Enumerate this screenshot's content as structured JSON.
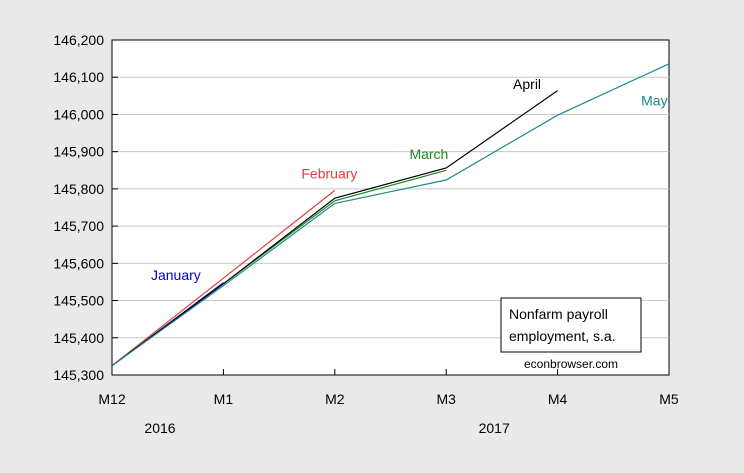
{
  "chart_data": {
    "type": "line",
    "title": "",
    "xlabel": "",
    "ylabel": "",
    "x": [
      "M12",
      "M1",
      "M2",
      "M3",
      "M4",
      "M5"
    ],
    "year_labels": [
      {
        "text": "2016",
        "at": "M12"
      },
      {
        "text": "2017",
        "at": "M3"
      }
    ],
    "ylim": [
      145300,
      146200
    ],
    "yticks": [
      145300,
      145400,
      145500,
      145600,
      145700,
      145800,
      145900,
      146000,
      146100,
      146200
    ],
    "ytick_labels": [
      "145,300",
      "145,400",
      "145,500",
      "145,600",
      "145,700",
      "145,800",
      "145,900",
      "146,000",
      "146,100",
      "146,200"
    ],
    "grid": true,
    "series": [
      {
        "name": "January",
        "color": "#0000cc",
        "values": [
          145325,
          145548,
          null,
          null,
          null,
          null
        ]
      },
      {
        "name": "February",
        "color": "#e0403a",
        "values": [
          145325,
          145560,
          145796,
          null,
          null,
          null
        ]
      },
      {
        "name": "March",
        "color": "#1a8a1a",
        "values": [
          145325,
          145545,
          145768,
          145850,
          null,
          null
        ]
      },
      {
        "name": "April",
        "color": "#000000",
        "values": [
          145325,
          145545,
          145775,
          145856,
          146064,
          null
        ]
      },
      {
        "name": "May",
        "color": "#1a8a8a",
        "values": [
          145325,
          145540,
          145761,
          145824,
          145998,
          146136
        ]
      }
    ],
    "series_label_anchor": [
      {
        "x": 0.35,
        "y": 145555
      },
      {
        "x": 1.7,
        "y": 145828
      },
      {
        "x": 2.67,
        "y": 145880
      },
      {
        "x": 3.6,
        "y": 146068
      },
      {
        "x": 4.75,
        "y": 146024
      }
    ],
    "legend_box": {
      "lines": [
        "Nonfarm payroll",
        "employment, s.a."
      ],
      "placement": "lower-right"
    },
    "footer_note": "econbrowser.com"
  }
}
